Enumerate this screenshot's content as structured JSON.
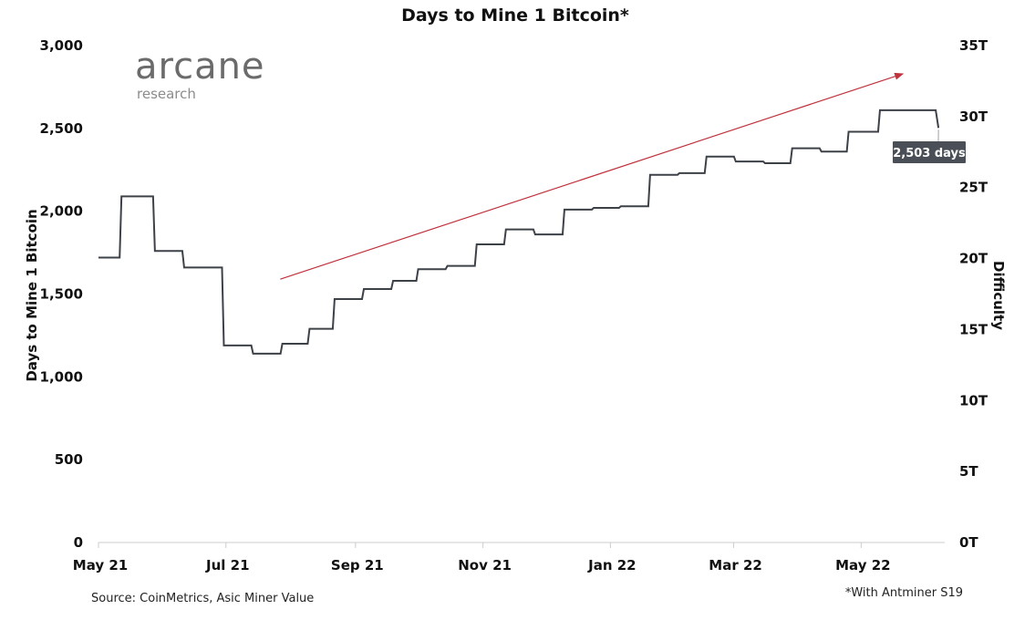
{
  "chart_data": {
    "type": "line",
    "title": "Days to Mine 1 Bitcoin*",
    "ylabel": "Days to Mine 1 Bitcoin",
    "y2label": "Difficulty",
    "ylim": [
      0,
      3000
    ],
    "y2lim": [
      0,
      35
    ],
    "yticks": [
      "0",
      "500",
      "1,000",
      "1,500",
      "2,000",
      "2,500",
      "3,000"
    ],
    "y2ticks": [
      "0T",
      "5T",
      "10T",
      "15T",
      "20T",
      "25T",
      "30T",
      "35T"
    ],
    "xlim": [
      "2021-05-01",
      "2022-06-10"
    ],
    "xticks": [
      {
        "date": "2021-05-01",
        "label": "May 21"
      },
      {
        "date": "2021-07-01",
        "label": "Jul 21"
      },
      {
        "date": "2021-09-01",
        "label": "Sep 21"
      },
      {
        "date": "2021-11-01",
        "label": "Nov 21"
      },
      {
        "date": "2022-01-01",
        "label": "Jan 22"
      },
      {
        "date": "2022-03-01",
        "label": "Mar 22"
      },
      {
        "date": "2022-05-01",
        "label": "May 22"
      }
    ],
    "grid": false,
    "series": [
      {
        "color": "#3d4148",
        "step": true,
        "points": [
          [
            "2021-05-01",
            1720
          ],
          [
            "2021-05-12",
            2090
          ],
          [
            "2021-05-28",
            1760
          ],
          [
            "2021-06-11",
            1660
          ],
          [
            "2021-06-30",
            1190
          ],
          [
            "2021-07-14",
            1140
          ],
          [
            "2021-07-28",
            1200
          ],
          [
            "2021-08-10",
            1290
          ],
          [
            "2021-08-22",
            1470
          ],
          [
            "2021-09-05",
            1530
          ],
          [
            "2021-09-19",
            1580
          ],
          [
            "2021-10-01",
            1650
          ],
          [
            "2021-10-15",
            1670
          ],
          [
            "2021-10-29",
            1800
          ],
          [
            "2021-11-12",
            1890
          ],
          [
            "2021-11-26",
            1860
          ],
          [
            "2021-12-10",
            2010
          ],
          [
            "2021-12-24",
            2020
          ],
          [
            "2022-01-06",
            2030
          ],
          [
            "2022-01-20",
            2220
          ],
          [
            "2022-02-03",
            2230
          ],
          [
            "2022-02-16",
            2330
          ],
          [
            "2022-03-02",
            2300
          ],
          [
            "2022-03-16",
            2290
          ],
          [
            "2022-03-29",
            2380
          ],
          [
            "2022-04-12",
            2360
          ],
          [
            "2022-04-25",
            2480
          ],
          [
            "2022-05-10",
            2610
          ],
          [
            "2022-06-07",
            2503
          ]
        ]
      }
    ],
    "trend_arrow": {
      "color": "#c0323c",
      "from": [
        "2021-07-27",
        1590
      ],
      "to": [
        "2022-05-21",
        2830
      ]
    },
    "annotation": {
      "text": "2,503 days",
      "point": [
        "2022-06-07",
        2503
      ],
      "background": "#4a4f57"
    },
    "line_color": "#3d4148",
    "axis_color": "#cccccc"
  },
  "logo": {
    "name": "arcane",
    "sub": "research"
  },
  "footer": {
    "source": "Source: CoinMetrics, Asic Miner Value",
    "note": "*With Antminer S19"
  }
}
